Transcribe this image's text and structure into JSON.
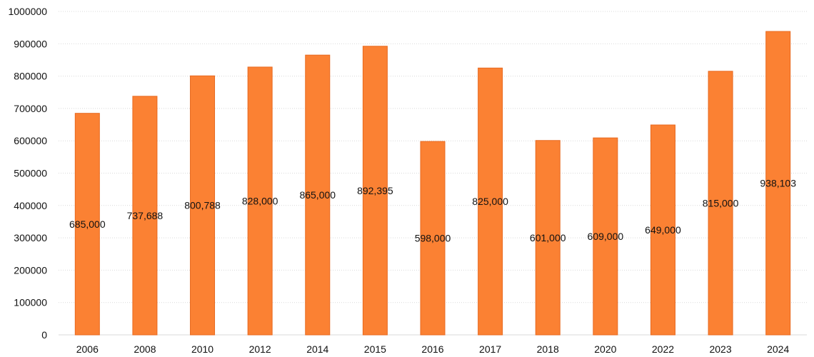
{
  "chart_data": {
    "type": "bar",
    "title": "",
    "xlabel": "",
    "ylabel": "",
    "categories": [
      "2006",
      "2008",
      "2010",
      "2012",
      "2014",
      "2015",
      "2016",
      "2017",
      "2018",
      "2020",
      "2022",
      "2023",
      "2024"
    ],
    "values": [
      685000,
      737688,
      800788,
      828000,
      865000,
      892395,
      598000,
      825000,
      601000,
      609000,
      649000,
      815000,
      938103
    ],
    "data_labels": [
      "685,000",
      "737,688",
      "800,788",
      "828,000",
      "865,000",
      "892,395",
      "598,000",
      "825,000",
      "601,000",
      "609,000",
      "649,000",
      "815,000",
      "938,103"
    ],
    "y_ticks": [
      "0",
      "100000",
      "200000",
      "300000",
      "400000",
      "500000",
      "600000",
      "700000",
      "800000",
      "900000",
      "1000000"
    ],
    "ylim": [
      0,
      1000000
    ],
    "grid": true,
    "legend": "none",
    "bar_color": "#fb8133",
    "bar_edge_color": "#e8691f"
  }
}
